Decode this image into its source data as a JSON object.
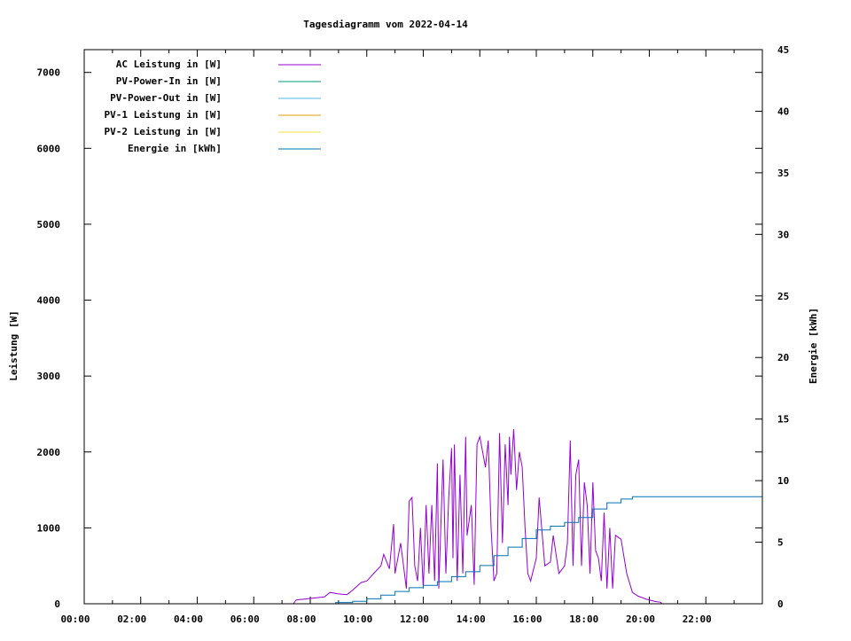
{
  "chart_data": {
    "type": "line",
    "title": "Tagesdiagramm vom 2022-04-14",
    "ylabel": "Leistung [W]",
    "y2label": "Energie [kWh]",
    "xlim": [
      0,
      24
    ],
    "ylim": [
      0,
      7300
    ],
    "y2lim": [
      0,
      45
    ],
    "xticks": [
      "00:00",
      "02:00",
      "04:00",
      "06:00",
      "08:00",
      "10:00",
      "12:00",
      "14:00",
      "16:00",
      "18:00",
      "20:00",
      "22:00"
    ],
    "yticks": [
      0,
      1000,
      2000,
      3000,
      4000,
      5000,
      6000,
      7000
    ],
    "y2ticks": [
      0,
      5,
      10,
      15,
      20,
      25,
      30,
      35,
      40,
      45
    ],
    "legend_position": "top-left",
    "series": [
      {
        "name": "AC Leistung in [W]",
        "color": "#9400d3",
        "axis": "y",
        "points": [
          [
            7.4,
            0
          ],
          [
            7.5,
            50
          ],
          [
            8.0,
            70
          ],
          [
            8.5,
            90
          ],
          [
            8.7,
            150
          ],
          [
            9.0,
            130
          ],
          [
            9.3,
            120
          ],
          [
            9.5,
            180
          ],
          [
            9.8,
            280
          ],
          [
            10.0,
            300
          ],
          [
            10.3,
            420
          ],
          [
            10.5,
            500
          ],
          [
            10.6,
            650
          ],
          [
            10.8,
            460
          ],
          [
            10.95,
            1050
          ],
          [
            11.0,
            400
          ],
          [
            11.2,
            800
          ],
          [
            11.4,
            200
          ],
          [
            11.5,
            1350
          ],
          [
            11.6,
            1400
          ],
          [
            11.7,
            500
          ],
          [
            11.8,
            300
          ],
          [
            11.9,
            1000
          ],
          [
            12.0,
            200
          ],
          [
            12.1,
            1300
          ],
          [
            12.2,
            400
          ],
          [
            12.3,
            1300
          ],
          [
            12.4,
            300
          ],
          [
            12.5,
            1850
          ],
          [
            12.55,
            200
          ],
          [
            12.7,
            1900
          ],
          [
            12.8,
            400
          ],
          [
            12.9,
            1400
          ],
          [
            13.0,
            2050
          ],
          [
            13.05,
            600
          ],
          [
            13.1,
            2100
          ],
          [
            13.2,
            300
          ],
          [
            13.3,
            1700
          ],
          [
            13.4,
            400
          ],
          [
            13.5,
            2200
          ],
          [
            13.55,
            900
          ],
          [
            13.7,
            1300
          ],
          [
            13.8,
            250
          ],
          [
            13.9,
            2100
          ],
          [
            14.0,
            2200
          ],
          [
            14.2,
            1800
          ],
          [
            14.3,
            2150
          ],
          [
            14.4,
            1000
          ],
          [
            14.5,
            300
          ],
          [
            14.6,
            400
          ],
          [
            14.7,
            2250
          ],
          [
            14.8,
            800
          ],
          [
            14.9,
            2100
          ],
          [
            15.0,
            1300
          ],
          [
            15.05,
            2200
          ],
          [
            15.1,
            1700
          ],
          [
            15.2,
            2300
          ],
          [
            15.3,
            1500
          ],
          [
            15.4,
            2000
          ],
          [
            15.5,
            1800
          ],
          [
            15.6,
            1000
          ],
          [
            15.7,
            400
          ],
          [
            15.8,
            300
          ],
          [
            16.0,
            600
          ],
          [
            16.1,
            1400
          ],
          [
            16.3,
            500
          ],
          [
            16.5,
            550
          ],
          [
            16.6,
            900
          ],
          [
            16.8,
            400
          ],
          [
            17.0,
            500
          ],
          [
            17.1,
            800
          ],
          [
            17.2,
            2150
          ],
          [
            17.3,
            500
          ],
          [
            17.4,
            1700
          ],
          [
            17.5,
            1900
          ],
          [
            17.6,
            500
          ],
          [
            17.7,
            1600
          ],
          [
            17.8,
            1300
          ],
          [
            17.9,
            400
          ],
          [
            18.0,
            1600
          ],
          [
            18.1,
            700
          ],
          [
            18.2,
            600
          ],
          [
            18.3,
            300
          ],
          [
            18.4,
            1200
          ],
          [
            18.5,
            200
          ],
          [
            18.6,
            1000
          ],
          [
            18.7,
            200
          ],
          [
            18.8,
            900
          ],
          [
            19.0,
            850
          ],
          [
            19.2,
            400
          ],
          [
            19.4,
            150
          ],
          [
            19.6,
            100
          ],
          [
            19.9,
            60
          ],
          [
            20.2,
            30
          ],
          [
            20.4,
            20
          ],
          [
            20.45,
            0
          ]
        ]
      },
      {
        "name": "PV-Power-In in [W]",
        "color": "#009e73",
        "axis": "y",
        "points": []
      },
      {
        "name": "PV-Power-Out in [W]",
        "color": "#56b4e9",
        "axis": "y",
        "points": []
      },
      {
        "name": "PV-1 Leistung in [W]",
        "color": "#e69f00",
        "axis": "y",
        "points": []
      },
      {
        "name": "PV-2 Leistung in [W]",
        "color": "#f0e442",
        "axis": "y",
        "points": []
      },
      {
        "name": "Energie in [kWh]",
        "color": "#0072b2",
        "axis": "y2",
        "points": [
          [
            8.0,
            0
          ],
          [
            8.9,
            0.1
          ],
          [
            9.5,
            0.2
          ],
          [
            10.0,
            0.4
          ],
          [
            10.5,
            0.7
          ],
          [
            11.0,
            1.0
          ],
          [
            11.5,
            1.3
          ],
          [
            12.0,
            1.5
          ],
          [
            12.5,
            1.8
          ],
          [
            13.0,
            2.2
          ],
          [
            13.5,
            2.6
          ],
          [
            14.0,
            3.1
          ],
          [
            14.5,
            3.9
          ],
          [
            15.0,
            4.6
          ],
          [
            15.5,
            5.3
          ],
          [
            16.0,
            6.0
          ],
          [
            16.5,
            6.3
          ],
          [
            17.0,
            6.6
          ],
          [
            17.5,
            7.0
          ],
          [
            18.0,
            7.7
          ],
          [
            18.5,
            8.2
          ],
          [
            19.0,
            8.5
          ],
          [
            19.4,
            8.7
          ],
          [
            24.0,
            8.7
          ]
        ]
      }
    ]
  }
}
